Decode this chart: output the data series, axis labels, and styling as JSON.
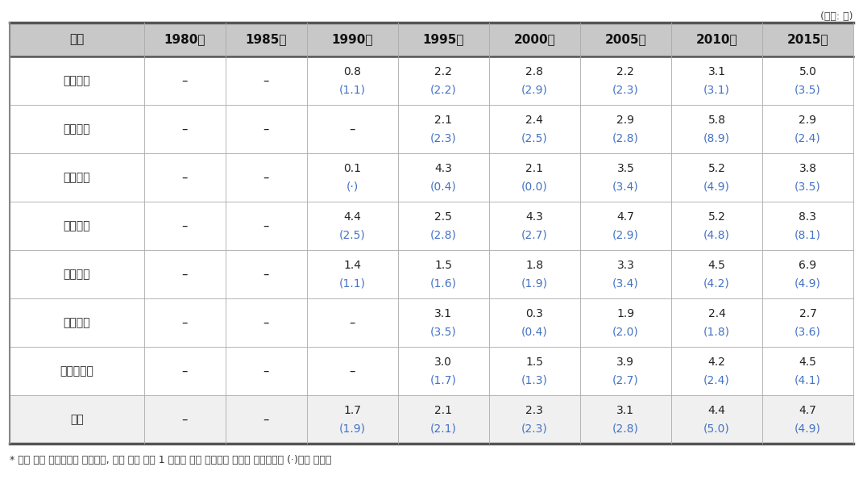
{
  "unit_label": "(단위: 년)",
  "columns": [
    "구분",
    "1980년",
    "1985년",
    "1990년",
    "1995년",
    "2000년",
    "2005년",
    "2010년",
    "2015년"
  ],
  "rows": [
    {
      "label": "인문계열",
      "values": [
        "–",
        "–",
        "0.8\n(1.1)",
        "2.2\n(2.2)",
        "2.8\n(2.9)",
        "2.2\n(2.3)",
        "3.1\n(3.1)",
        "5.0\n(3.5)"
      ]
    },
    {
      "label": "사회계열",
      "values": [
        "–",
        "–",
        "–",
        "2.1\n(2.3)",
        "2.4\n(2.5)",
        "2.9\n(2.8)",
        "5.8\n(8.9)",
        "2.9\n(2.4)"
      ]
    },
    {
      "label": "교육계열",
      "values": [
        "–",
        "–",
        "0.1\n(·)",
        "4.3\n(0.4)",
        "2.1\n(0.0)",
        "3.5\n(3.4)",
        "5.2\n(4.9)",
        "3.8\n(3.5)"
      ]
    },
    {
      "label": "자연계열",
      "values": [
        "–",
        "–",
        "4.4\n(2.5)",
        "2.5\n(2.8)",
        "4.3\n(2.7)",
        "4.7\n(2.9)",
        "5.2\n(4.8)",
        "8.3\n(8.1)"
      ]
    },
    {
      "label": "공학계열",
      "values": [
        "–",
        "–",
        "1.4\n(1.1)",
        "1.5\n(1.6)",
        "1.8\n(1.9)",
        "3.3\n(3.4)",
        "4.5\n(4.2)",
        "6.9\n(4.9)"
      ]
    },
    {
      "label": "의약계열",
      "values": [
        "–",
        "–",
        "–",
        "3.1\n(3.5)",
        "0.3\n(0.4)",
        "1.9\n(2.0)",
        "2.4\n(1.8)",
        "2.7\n(3.6)"
      ]
    },
    {
      "label": "예체능계열",
      "values": [
        "–",
        "–",
        "–",
        "3.0\n(1.7)",
        "1.5\n(1.3)",
        "3.9\n(2.7)",
        "4.2\n(2.4)",
        "4.5\n(4.1)"
      ]
    },
    {
      "label": "전체",
      "values": [
        "–",
        "–",
        "1.7\n(1.9)",
        "2.1\n(2.1)",
        "2.3\n(2.3)",
        "3.1\n(2.8)",
        "4.4\n(5.0)",
        "4.7\n(4.9)"
      ]
    }
  ],
  "footnote": "* 괄호 안은 표준편차를 의미하며, 해당 교원 수가 1 이하인 경우 표준편차 산출이 불가능하여 (·)으로 표시함",
  "header_bg": "#c8c8c8",
  "header_text_color": "#111111",
  "cell_bg_white": "#ffffff",
  "last_row_bg": "#f0f0f0",
  "border_color_thick": "#555555",
  "border_color_thin": "#aaaaaa",
  "text_color_main": "#222222",
  "text_color_paren": "#4472c4",
  "col_widths_raw": [
    1.4,
    0.85,
    0.85,
    0.95,
    0.95,
    0.95,
    0.95,
    0.95,
    0.95
  ],
  "header_fontsize": 11,
  "data_fontsize": 10,
  "footnote_fontsize": 9
}
